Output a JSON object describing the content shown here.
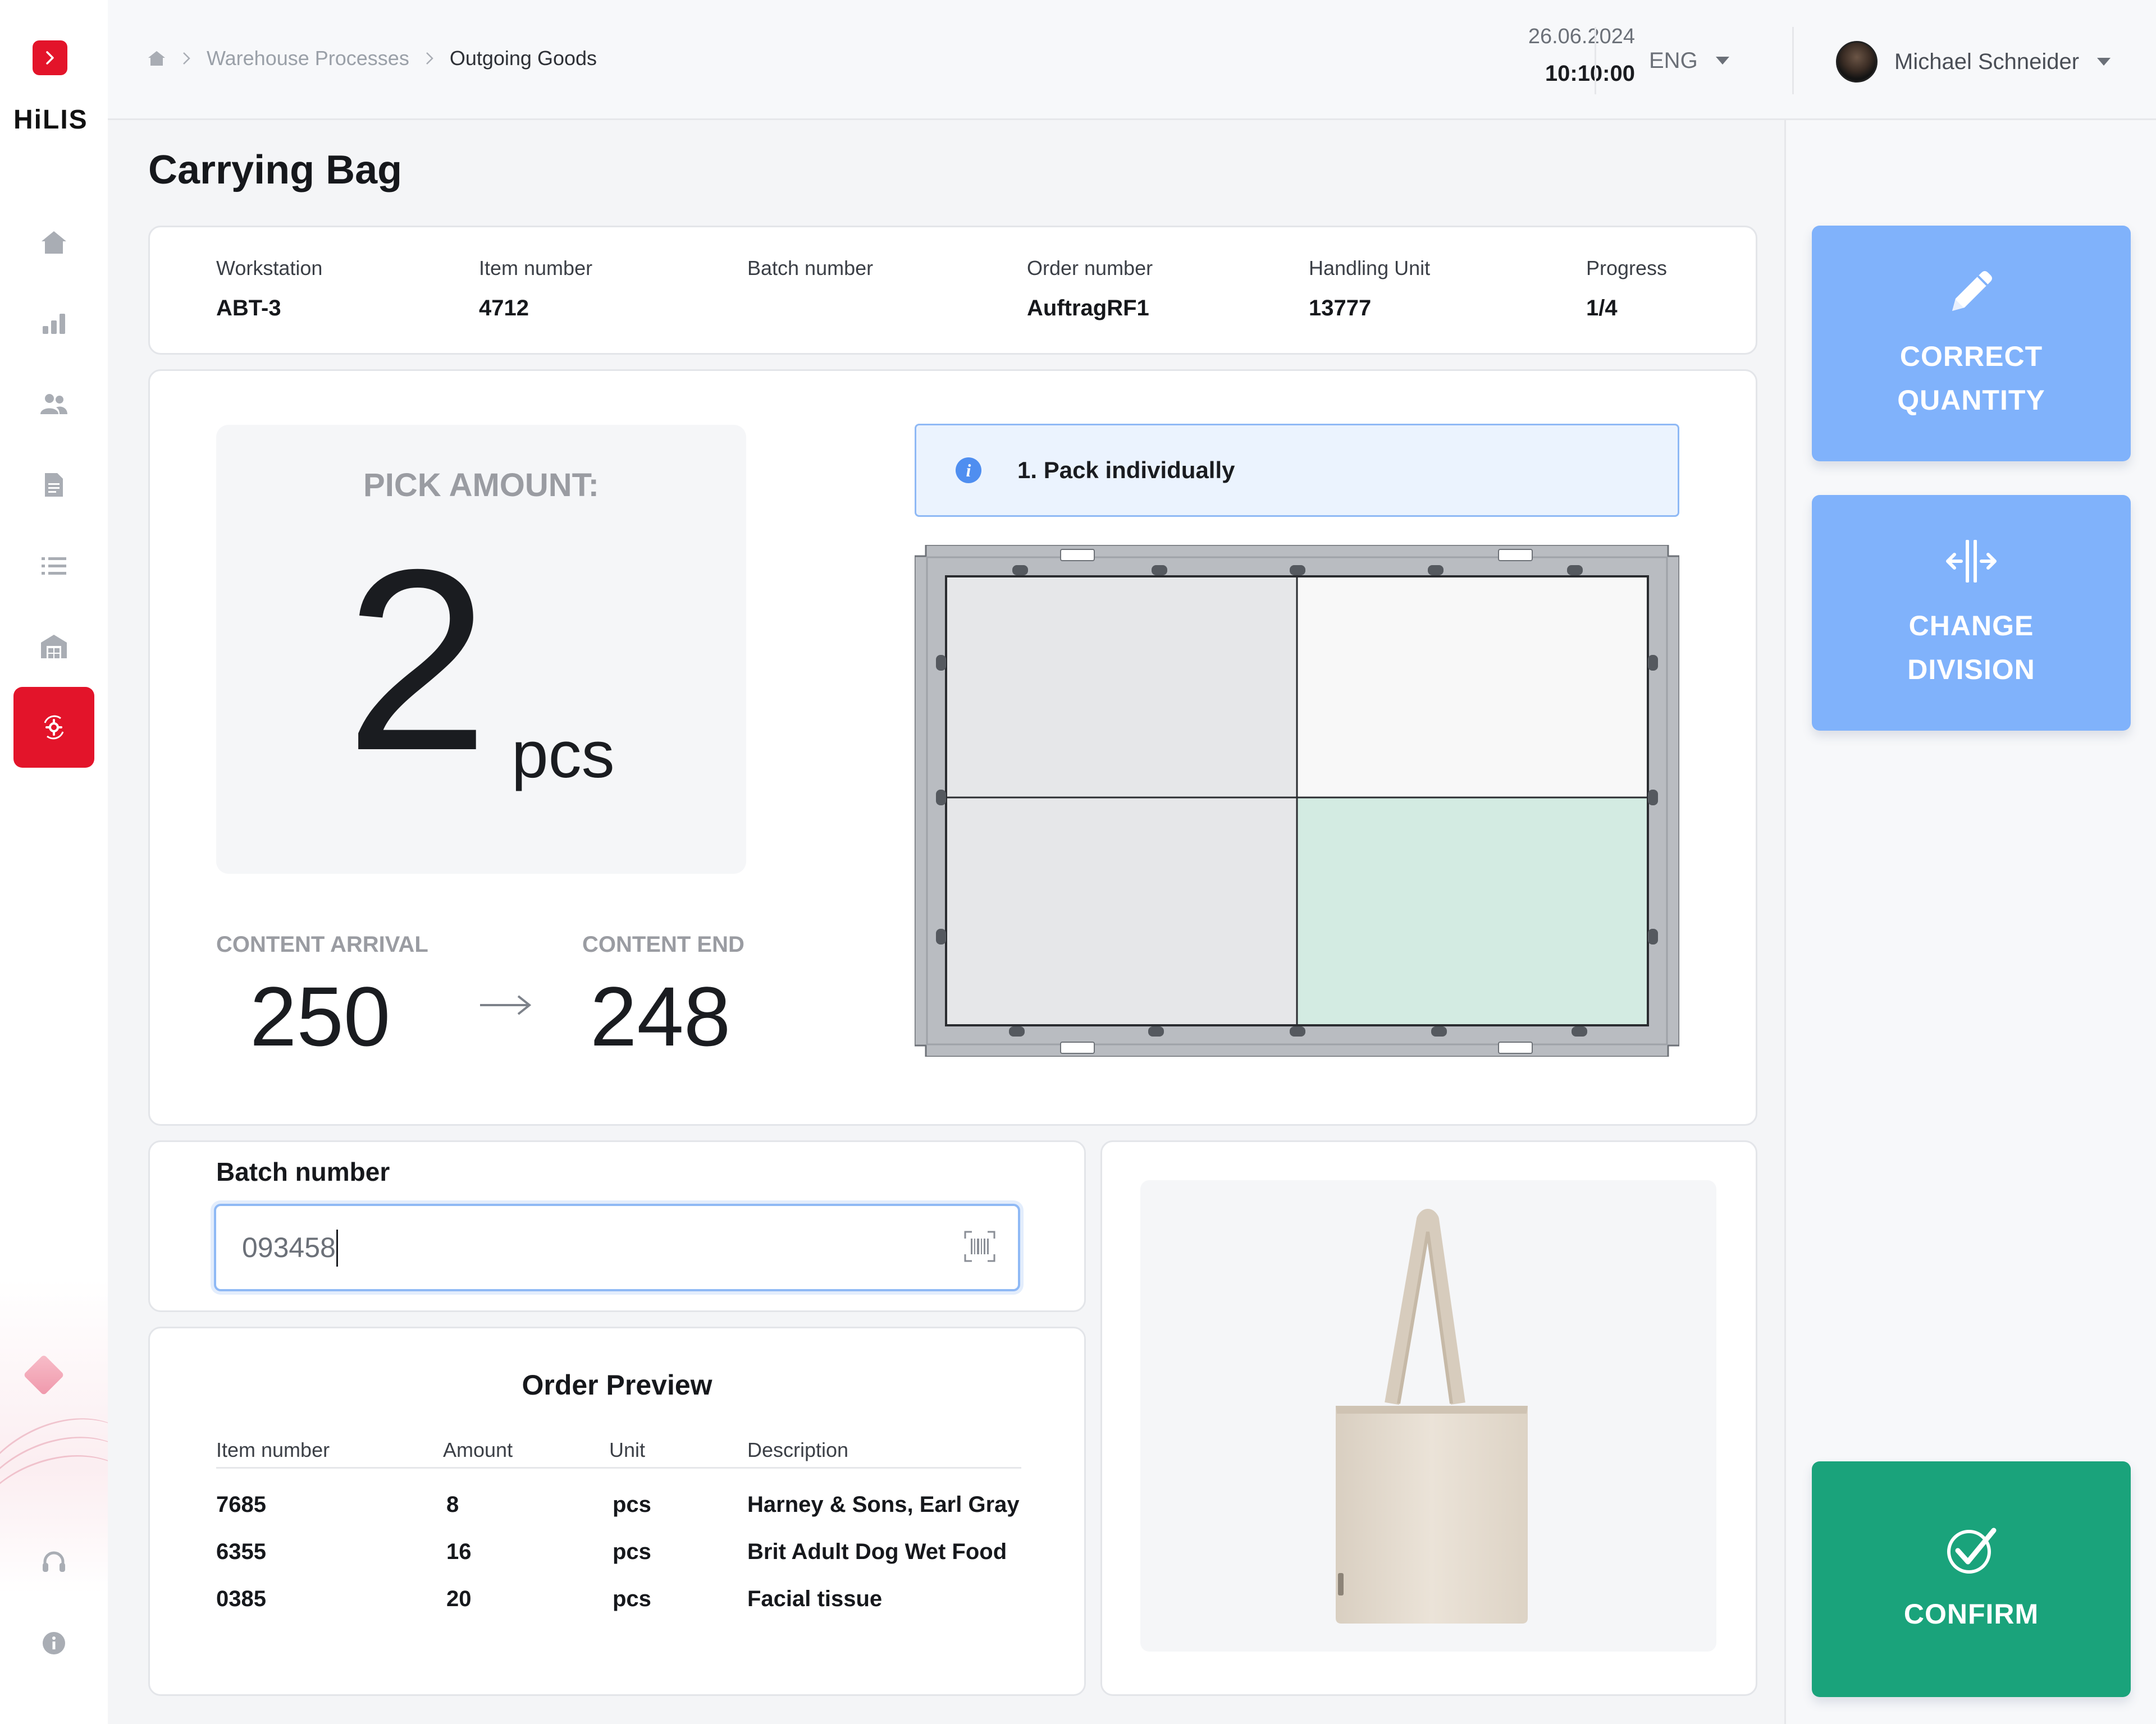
{
  "app": {
    "logo_text": "HiLIS"
  },
  "breadcrumb": {
    "section": "Warehouse Processes",
    "current": "Outgoing Goods"
  },
  "header": {
    "date": "26.06.2024",
    "time": "10:10:00",
    "language": "ENG",
    "user_name": "Michael Schneider"
  },
  "page": {
    "title": "Carrying Bag"
  },
  "info": {
    "workstation_label": "Workstation",
    "workstation": "ABT-3",
    "item_label": "Item number",
    "item": "4712",
    "batch_label": "Batch number",
    "batch": "",
    "order_label": "Order number",
    "order": "AuftragRF1",
    "hu_label": "Handling Unit",
    "hu": "13777",
    "progress_label": "Progress",
    "progress": "1/4"
  },
  "pick": {
    "title": "PICK AMOUNT:",
    "amount": "2",
    "unit": "pcs",
    "arrival_label": "CONTENT ARRIVAL",
    "arrival": "250",
    "end_label": "CONTENT END",
    "end": "248"
  },
  "instruction": {
    "text": "1.  Pack individually"
  },
  "tray": {
    "rows": 2,
    "cols": 2,
    "highlight_compartment": "bottom-right",
    "highlight_color": "#d3ebe2",
    "compartment_fills": [
      "#e6e7e9",
      "#f8f8f8",
      "#e6e7e9",
      "#d3ebe2"
    ]
  },
  "batch_entry": {
    "label": "Batch number",
    "value": "093458"
  },
  "order_preview": {
    "title": "Order Preview",
    "headers": {
      "item": "Item number",
      "amount": "Amount",
      "unit": "Unit",
      "description": "Description"
    },
    "rows": [
      {
        "item": "7685",
        "amount": "8",
        "unit": "pcs",
        "description": "Harney & Sons, Earl Gray"
      },
      {
        "item": "6355",
        "amount": "16",
        "unit": "pcs",
        "description": "Brit Adult Dog Wet Food"
      },
      {
        "item": "0385",
        "amount": "20",
        "unit": "pcs",
        "description": "Facial tissue"
      }
    ]
  },
  "actions": {
    "correct_line1": "CORRECT",
    "correct_line2": "QUANTITY",
    "division_line1": "CHANGE",
    "division_line2": "DIVISION",
    "confirm": "CONFIRM"
  },
  "colors": {
    "brand_red": "#e3142a",
    "action_blue": "#80b2fb",
    "confirm_green": "#1aa37b"
  }
}
